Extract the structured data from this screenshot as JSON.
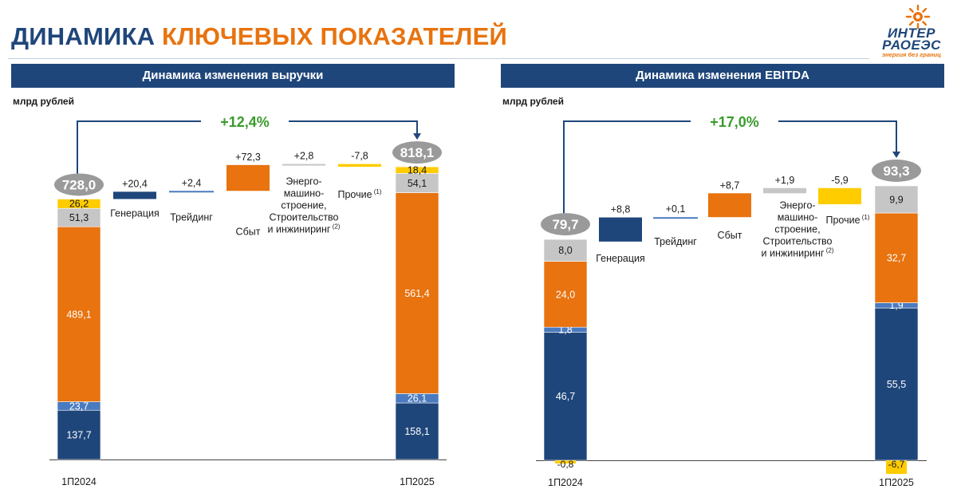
{
  "header": {
    "title_part1": "ДИНАМИКА",
    "title_part2": "КЛЮЧЕВЫХ ПОКАЗАТЕЛЕЙ",
    "logo_line1": "ИНТЕР",
    "logo_line2": "РАОЕЭС",
    "logo_tagline": "энергия без границ"
  },
  "colors": {
    "navy": "#1f467a",
    "blue": "#4a7bc0",
    "orange": "#e8730f",
    "gray": "#c6c6c6",
    "yellow": "#ffcc00",
    "green": "#3a9b2c"
  },
  "chart_data": [
    {
      "type": "bar",
      "title": "Динамика изменения выручки",
      "ylabel": "млрд рублей",
      "growth_label": "+12,4%",
      "start": {
        "label": "1П2024",
        "total_label": "728,0",
        "segments": [
          {
            "name": "Генерация",
            "value": 137.7,
            "label": "137,7",
            "color": "#1f467a"
          },
          {
            "name": "Трейдинг",
            "value": 23.7,
            "label": "23,7",
            "color": "#4a7bc0"
          },
          {
            "name": "Сбыт",
            "value": 489.1,
            "label": "489,1",
            "color": "#e8730f"
          },
          {
            "name": "Энергомашиностроение, Строительство и инжиниринг",
            "value": 51.3,
            "label": "51,3",
            "color": "#c6c6c6"
          },
          {
            "name": "Прочие",
            "value": 26.2,
            "label": "26,2",
            "color": "#ffcc00"
          }
        ]
      },
      "end": {
        "label": "1П2025",
        "total_label": "818,1",
        "segments": [
          {
            "name": "Генерация",
            "value": 158.1,
            "label": "158,1",
            "color": "#1f467a"
          },
          {
            "name": "Трейдинг",
            "value": 26.1,
            "label": "26,1",
            "color": "#4a7bc0"
          },
          {
            "name": "Сбыт",
            "value": 561.4,
            "label": "561,4",
            "color": "#e8730f"
          },
          {
            "name": "Энергомашиностроение, Строительство и инжиниринг",
            "value": 54.1,
            "label": "54,1",
            "color": "#c6c6c6"
          },
          {
            "name": "Прочие",
            "value": 18.4,
            "label": "18,4",
            "color": "#ffcc00"
          }
        ]
      },
      "changes": [
        {
          "value": 20.4,
          "label": "+20,4",
          "category": "Генерация",
          "color": "#1f467a"
        },
        {
          "value": 2.4,
          "label": "+2,4",
          "category": "Трейдинг",
          "color": "#4a7bc0"
        },
        {
          "value": 72.3,
          "label": "+72,3",
          "category": "Сбыт",
          "color": "#e8730f"
        },
        {
          "value": 2.8,
          "label": "+2,8",
          "category": "Энерго-\nмашино-\nстроение,\nСтроительство\nи инжиниринг",
          "sup": "(2)",
          "color": "#c6c6c6"
        },
        {
          "value": -7.8,
          "label": "-7,8",
          "category": "Прочие",
          "sup": "(1)",
          "color": "#ffcc00"
        }
      ]
    },
    {
      "type": "bar",
      "title": "Динамика изменения EBITDA",
      "ylabel": "млрд рублей",
      "growth_label": "+17,0%",
      "start": {
        "label": "1П2024",
        "total_label": "79,7",
        "segments": [
          {
            "name": "Генерация",
            "value": 46.7,
            "label": "46,7",
            "color": "#1f467a"
          },
          {
            "name": "Трейдинг",
            "value": 1.8,
            "label": "1,8",
            "color": "#4a7bc0"
          },
          {
            "name": "Сбыт",
            "value": 24.0,
            "label": "24,0",
            "color": "#e8730f"
          },
          {
            "name": "Энергомашиностроение, Строительство и инжиниринг",
            "value": 8.0,
            "label": "8,0",
            "color": "#c6c6c6"
          }
        ],
        "negative": {
          "name": "Прочие",
          "value": -0.8,
          "label": "-0,8",
          "color": "#ffcc00"
        }
      },
      "end": {
        "label": "1П2025",
        "total_label": "93,3",
        "segments": [
          {
            "name": "Генерация",
            "value": 55.5,
            "label": "55,5",
            "color": "#1f467a"
          },
          {
            "name": "Трейдинг",
            "value": 1.9,
            "label": "1,9",
            "color": "#4a7bc0"
          },
          {
            "name": "Сбыт",
            "value": 32.7,
            "label": "32,7",
            "color": "#e8730f"
          },
          {
            "name": "Энергомашиностроение, Строительство и инжиниринг",
            "value": 9.9,
            "label": "9,9",
            "color": "#c6c6c6"
          }
        ],
        "negative": {
          "name": "Прочие",
          "value": -6.7,
          "label": "-6,7",
          "color": "#ffcc00"
        }
      },
      "changes": [
        {
          "value": 8.8,
          "label": "+8,8",
          "category": "Генерация",
          "color": "#1f467a"
        },
        {
          "value": 0.1,
          "label": "+0,1",
          "category": "Трейдинг",
          "color": "#4a7bc0"
        },
        {
          "value": 8.7,
          "label": "+8,7",
          "category": "Сбыт",
          "color": "#e8730f"
        },
        {
          "value": 1.9,
          "label": "+1,9",
          "category": "Энерго-\nмашино-\nстроение,\nСтроительство\nи инжиниринг",
          "sup": "(2)",
          "color": "#c6c6c6"
        },
        {
          "value": -5.9,
          "label": "-5,9",
          "category": "Прочие",
          "sup": "(1)",
          "color": "#ffcc00"
        }
      ]
    }
  ]
}
